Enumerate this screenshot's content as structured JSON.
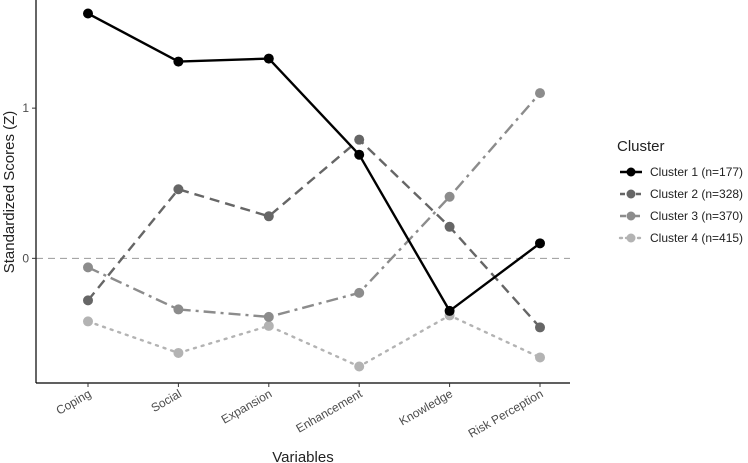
{
  "chart_data": {
    "type": "line",
    "title": "",
    "xlabel": "Variables",
    "ylabel": "Standardized Scores (Z)",
    "categories": [
      "Coping",
      "Social",
      "Expansion",
      "Enhancement",
      "Knowledge",
      "Risk Perception"
    ],
    "yticks": [
      0,
      1
    ],
    "ylim": [
      -0.83,
      1.72
    ],
    "grid": false,
    "reference_line": {
      "y": 0,
      "style": "dashed",
      "color": "#999999"
    },
    "legend": {
      "title": "Cluster",
      "position": "right"
    },
    "series": [
      {
        "name": "Cluster 1 (n=177)",
        "values": [
          1.63,
          1.31,
          1.33,
          0.69,
          -0.35,
          0.1
        ],
        "color": "#000000",
        "dash": "solid"
      },
      {
        "name": "Cluster 2 (n=328)",
        "values": [
          -0.28,
          0.46,
          0.28,
          0.79,
          0.21,
          -0.46
        ],
        "color": "#666666",
        "dash": "dashed"
      },
      {
        "name": "Cluster 3 (n=370)",
        "values": [
          -0.06,
          -0.34,
          -0.39,
          -0.23,
          0.41,
          1.1
        ],
        "color": "#8c8c8c",
        "dash": "dashdot"
      },
      {
        "name": "Cluster 4 (n=415)",
        "values": [
          -0.42,
          -0.63,
          -0.45,
          -0.72,
          -0.38,
          -0.66
        ],
        "color": "#b3b3b3",
        "dash": "dotted"
      }
    ]
  }
}
